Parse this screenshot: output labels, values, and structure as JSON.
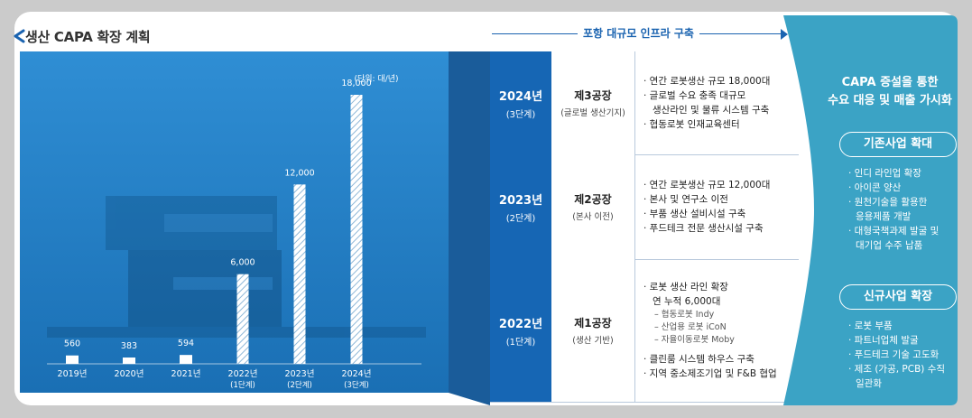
{
  "header": {
    "title": "생산 CAPA 확장 계획"
  },
  "chart_data": {
    "type": "bar",
    "unit_label": "(단위: 대/년)",
    "categories": [
      "2019년",
      "2020년",
      "2021년",
      "2022년",
      "2023년",
      "2024년"
    ],
    "category_sublabels": [
      "",
      "",
      "",
      "(1단계)",
      "(2단계)",
      "(3단계)"
    ],
    "values": [
      560,
      383,
      594,
      6000,
      12000,
      18000
    ],
    "value_labels": [
      "560",
      "383",
      "594",
      "6,000",
      "12,000",
      "18,000"
    ],
    "ylim": [
      0,
      18000
    ]
  },
  "flow": {
    "label": "포항 대규모 인프라 구축"
  },
  "plan": [
    {
      "year": "2024년",
      "stage": "(3단계)",
      "plant": "제3공장",
      "plant_sub": "(글로벌 생산기지)",
      "bullets": [
        "· 연간 로봇생산 규모 18,000대",
        "· 글로벌 수요 충족 대규모",
        "생산라인 및 물류 시스템 구축",
        "· 협동로봇 인재교육센터"
      ]
    },
    {
      "year": "2023년",
      "stage": "(2단계)",
      "plant": "제2공장",
      "plant_sub": "(본사 이전)",
      "bullets": [
        "· 연간 로봇생산 규모 12,000대",
        "· 본사 및 연구소 이전",
        "· 부품 생산 설비시설 구축",
        "· 푸드테크 전문 생산시설 구축"
      ]
    },
    {
      "year": "2022년",
      "stage": "(1단계)",
      "plant": "제1공장",
      "plant_sub": "(생산 기반)",
      "bullets": [
        "· 로봇 생산 라인 확장",
        "연 누적 6,000대",
        "– 협동로봇 Indy",
        "– 산업용 로봇 iCoN",
        "– 자율이동로봇 Moby",
        "· 클린룸 시스템 하우스 구축",
        "· 지역 중소제조기업 및 F&B 협업"
      ]
    }
  ],
  "outcome": {
    "title_line1": "CAPA 증설을 통한",
    "title_line2": "수요 대응 및 매출 가시화",
    "existing_label": "기존사업 확대",
    "existing_items": [
      "· 인디 라인업 확장",
      "· 아이콘 양산",
      "· 원천기술을 활용한",
      "응용제품 개발",
      "· 대형국책과제 발굴 및",
      "대기업 수주 납품"
    ],
    "new_label": "신규사업 확장",
    "new_items": [
      "· 로봇 부품",
      "· 파트너업체 발굴",
      "· 푸드테크 기술 고도화",
      "· 제조 (가공, PCB) 수직",
      "일관화"
    ]
  },
  "colors": {
    "chart_bg": "#1f7fc7",
    "year_cell": "#1666b4",
    "teal": "#3ba3c5",
    "accent": "#1a63b0"
  }
}
